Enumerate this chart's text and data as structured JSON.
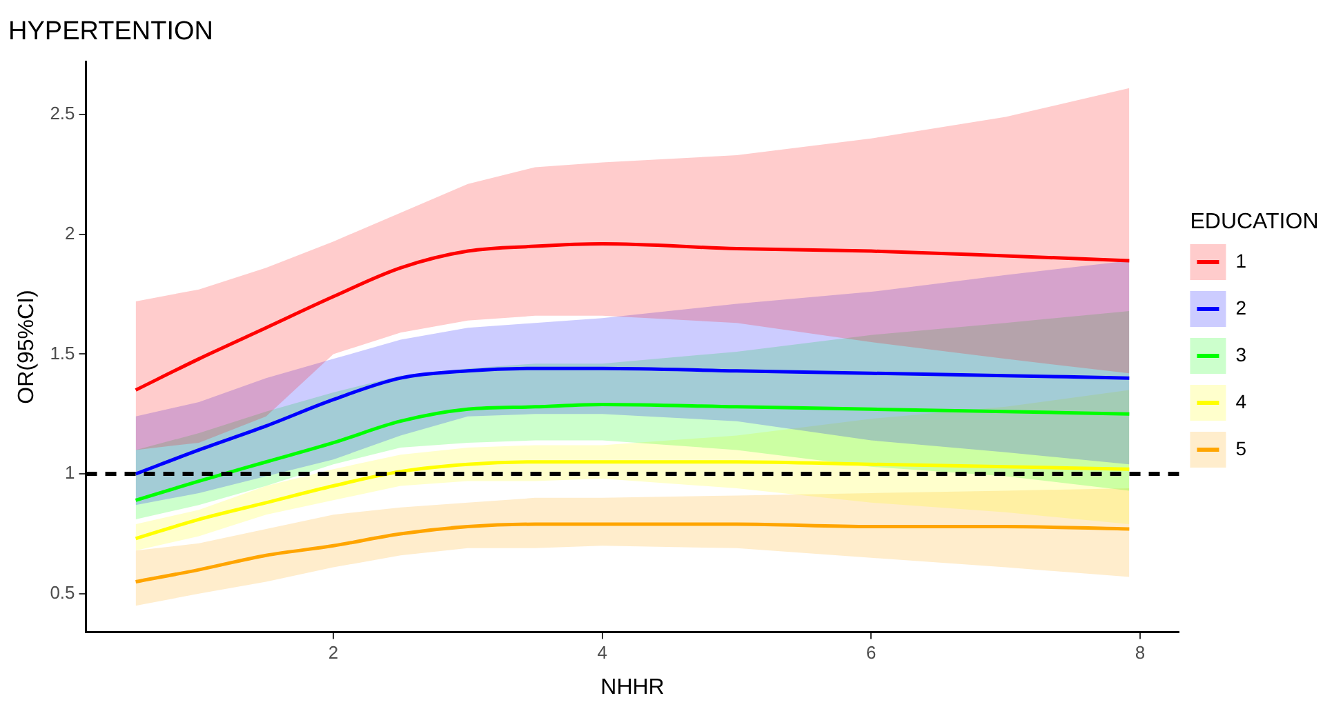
{
  "chart_data": {
    "type": "line",
    "title": "HYPERTENTION",
    "xlabel": "NHHR",
    "ylabel": "OR(95%CI)",
    "legend_title": "EDUCATION",
    "legend": "right",
    "grid": false,
    "marker": "none",
    "line_style": "solid",
    "x": [
      0.53,
      1,
      1.5,
      2,
      2.5,
      3,
      3.5,
      4,
      5,
      6,
      7,
      7.92
    ],
    "xlim": [
      0.16,
      8.29
    ],
    "xticks": [
      2,
      4,
      6,
      8
    ],
    "ylim": [
      0.34,
      2.72
    ],
    "yticks": [
      0.5,
      1.0,
      1.5,
      2.0,
      2.5
    ],
    "ref_lines": [
      {
        "axis": "y",
        "value": 1.0,
        "color": "#000000",
        "line_style": "dashed"
      }
    ],
    "series": [
      {
        "name": "1",
        "color": "#ff0000",
        "values": [
          1.35,
          1.48,
          1.61,
          1.74,
          1.86,
          1.93,
          1.95,
          1.96,
          1.94,
          1.93,
          1.91,
          1.89
        ],
        "upper": [
          1.72,
          1.77,
          1.86,
          1.97,
          2.09,
          2.21,
          2.28,
          2.3,
          2.33,
          2.4,
          2.49,
          2.61
        ],
        "lower": [
          1.1,
          1.13,
          1.24,
          1.5,
          1.59,
          1.64,
          1.66,
          1.66,
          1.63,
          1.55,
          1.48,
          1.42
        ]
      },
      {
        "name": "2",
        "color": "#0000ff",
        "values": [
          1.0,
          1.1,
          1.2,
          1.31,
          1.4,
          1.43,
          1.44,
          1.44,
          1.43,
          1.42,
          1.41,
          1.4
        ],
        "upper": [
          1.24,
          1.3,
          1.4,
          1.48,
          1.56,
          1.61,
          1.63,
          1.65,
          1.71,
          1.76,
          1.83,
          1.89
        ],
        "lower": [
          0.87,
          0.92,
          0.99,
          1.06,
          1.16,
          1.24,
          1.25,
          1.25,
          1.22,
          1.14,
          1.09,
          1.04
        ]
      },
      {
        "name": "3",
        "color": "#00ff00",
        "values": [
          0.89,
          0.97,
          1.05,
          1.13,
          1.22,
          1.27,
          1.28,
          1.29,
          1.28,
          1.27,
          1.26,
          1.25
        ],
        "upper": [
          1.1,
          1.17,
          1.26,
          1.34,
          1.41,
          1.44,
          1.46,
          1.46,
          1.51,
          1.58,
          1.63,
          1.68
        ],
        "lower": [
          0.81,
          0.87,
          0.95,
          1.04,
          1.11,
          1.13,
          1.14,
          1.14,
          1.1,
          1.03,
          0.99,
          0.93
        ]
      },
      {
        "name": "4",
        "color": "#ffff00",
        "values": [
          0.73,
          0.81,
          0.88,
          0.95,
          1.01,
          1.04,
          1.05,
          1.05,
          1.05,
          1.04,
          1.03,
          1.02
        ],
        "upper": [
          0.79,
          0.85,
          0.95,
          1.02,
          1.08,
          1.11,
          1.12,
          1.12,
          1.16,
          1.23,
          1.28,
          1.35
        ],
        "lower": [
          0.68,
          0.74,
          0.83,
          0.89,
          0.95,
          0.97,
          0.97,
          0.98,
          0.94,
          0.88,
          0.84,
          0.79
        ]
      },
      {
        "name": "5",
        "color": "#ffa500",
        "values": [
          0.55,
          0.6,
          0.66,
          0.7,
          0.75,
          0.78,
          0.79,
          0.79,
          0.79,
          0.78,
          0.78,
          0.77
        ],
        "upper": [
          0.68,
          0.71,
          0.77,
          0.83,
          0.86,
          0.88,
          0.9,
          0.9,
          0.91,
          0.92,
          0.93,
          0.94
        ],
        "lower": [
          0.45,
          0.5,
          0.55,
          0.61,
          0.66,
          0.69,
          0.69,
          0.7,
          0.69,
          0.65,
          0.61,
          0.57
        ]
      }
    ]
  }
}
